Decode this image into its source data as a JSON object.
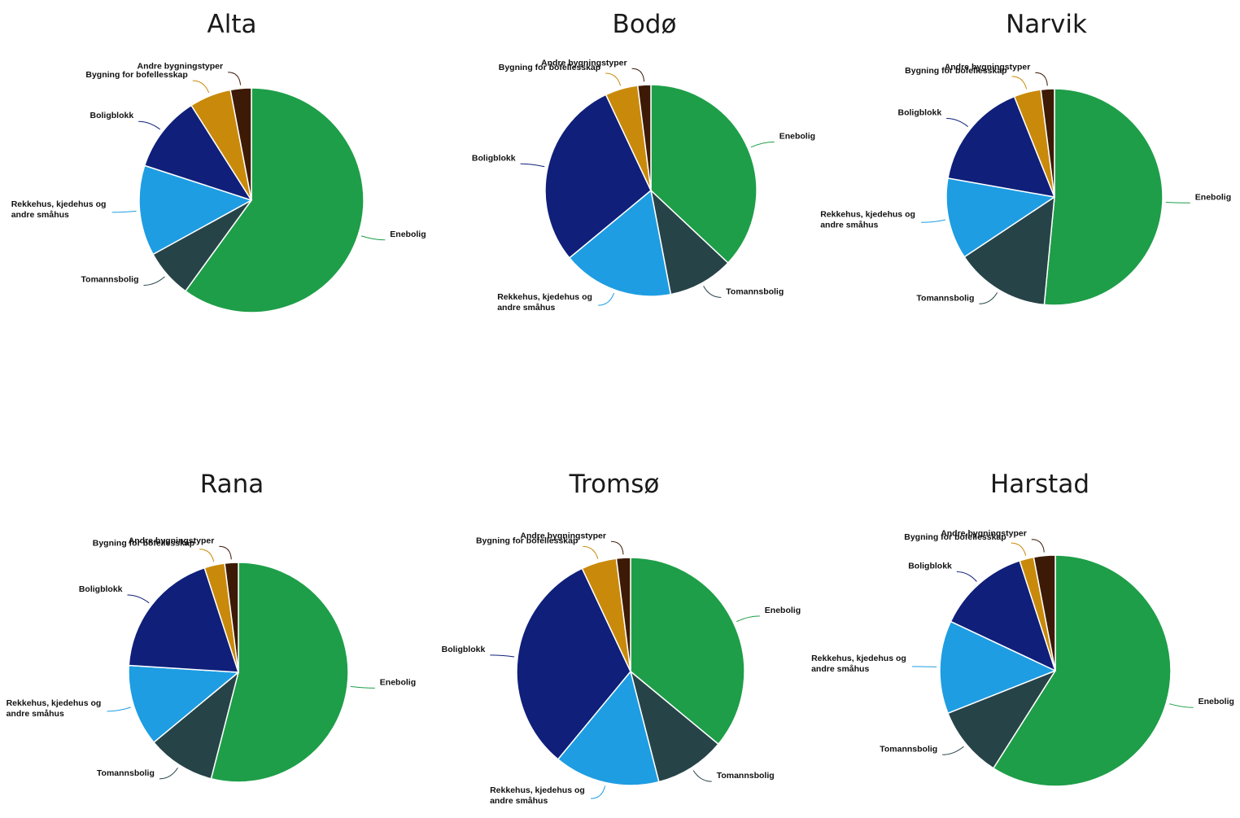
{
  "categories": [
    "Enebolig",
    "Tomannsbolig",
    "Rekkehus, kjedehus og andre småhus",
    "Boligblokk",
    "Bygning for bofellesskap",
    "Andre bygningstyper"
  ],
  "colors": {
    "Enebolig": "#1e9e48",
    "Tomannsbolig": "#264348",
    "Rekkehus, kjedehus og andre småhus": "#1e9de2",
    "Boligblokk": "#0f1f7a",
    "Bygning for bofellesskap": "#c98a0b",
    "Andre bygningstyper": "#3d1a06"
  },
  "chart_data": [
    {
      "type": "pie",
      "title": "Alta",
      "categories": [
        "Enebolig",
        "Tomannsbolig",
        "Rekkehus, kjedehus og andre småhus",
        "Boligblokk",
        "Bygning for bofellesskap",
        "Andre bygningstyper"
      ],
      "values": [
        60,
        7,
        13,
        11,
        6,
        3
      ]
    },
    {
      "type": "pie",
      "title": "Bodø",
      "categories": [
        "Enebolig",
        "Tomannsbolig",
        "Rekkehus, kjedehus og andre småhus",
        "Boligblokk",
        "Bygning for bofellesskap",
        "Andre bygningstyper"
      ],
      "values": [
        37,
        10,
        17,
        29,
        5,
        2
      ]
    },
    {
      "type": "pie",
      "title": "Narvik",
      "categories": [
        "Enebolig",
        "Tomannsbolig",
        "Rekkehus, kjedehus og andre småhus",
        "Boligblokk",
        "Bygning for bofellesskap",
        "Andre bygningstyper"
      ],
      "values": [
        51,
        14,
        12,
        16,
        4,
        2
      ]
    },
    {
      "type": "pie",
      "title": "Rana",
      "categories": [
        "Enebolig",
        "Tomannsbolig",
        "Rekkehus, kjedehus og andre småhus",
        "Boligblokk",
        "Bygning for bofellesskap",
        "Andre bygningstyper"
      ],
      "values": [
        54,
        10,
        12,
        19,
        3,
        2
      ]
    },
    {
      "type": "pie",
      "title": "Tromsø",
      "categories": [
        "Enebolig",
        "Tomannsbolig",
        "Rekkehus, kjedehus og andre småhus",
        "Boligblokk",
        "Bygning for bofellesskap",
        "Andre bygningstyper"
      ],
      "values": [
        36,
        10,
        15,
        32,
        5,
        2
      ]
    },
    {
      "type": "pie",
      "title": "Harstad",
      "categories": [
        "Enebolig",
        "Tomannsbolig",
        "Rekkehus, kjedehus og andre småhus",
        "Boligblokk",
        "Bygning for bofellesskap",
        "Andre bygningstyper"
      ],
      "values": [
        59,
        10,
        13,
        13,
        2,
        3
      ]
    }
  ]
}
